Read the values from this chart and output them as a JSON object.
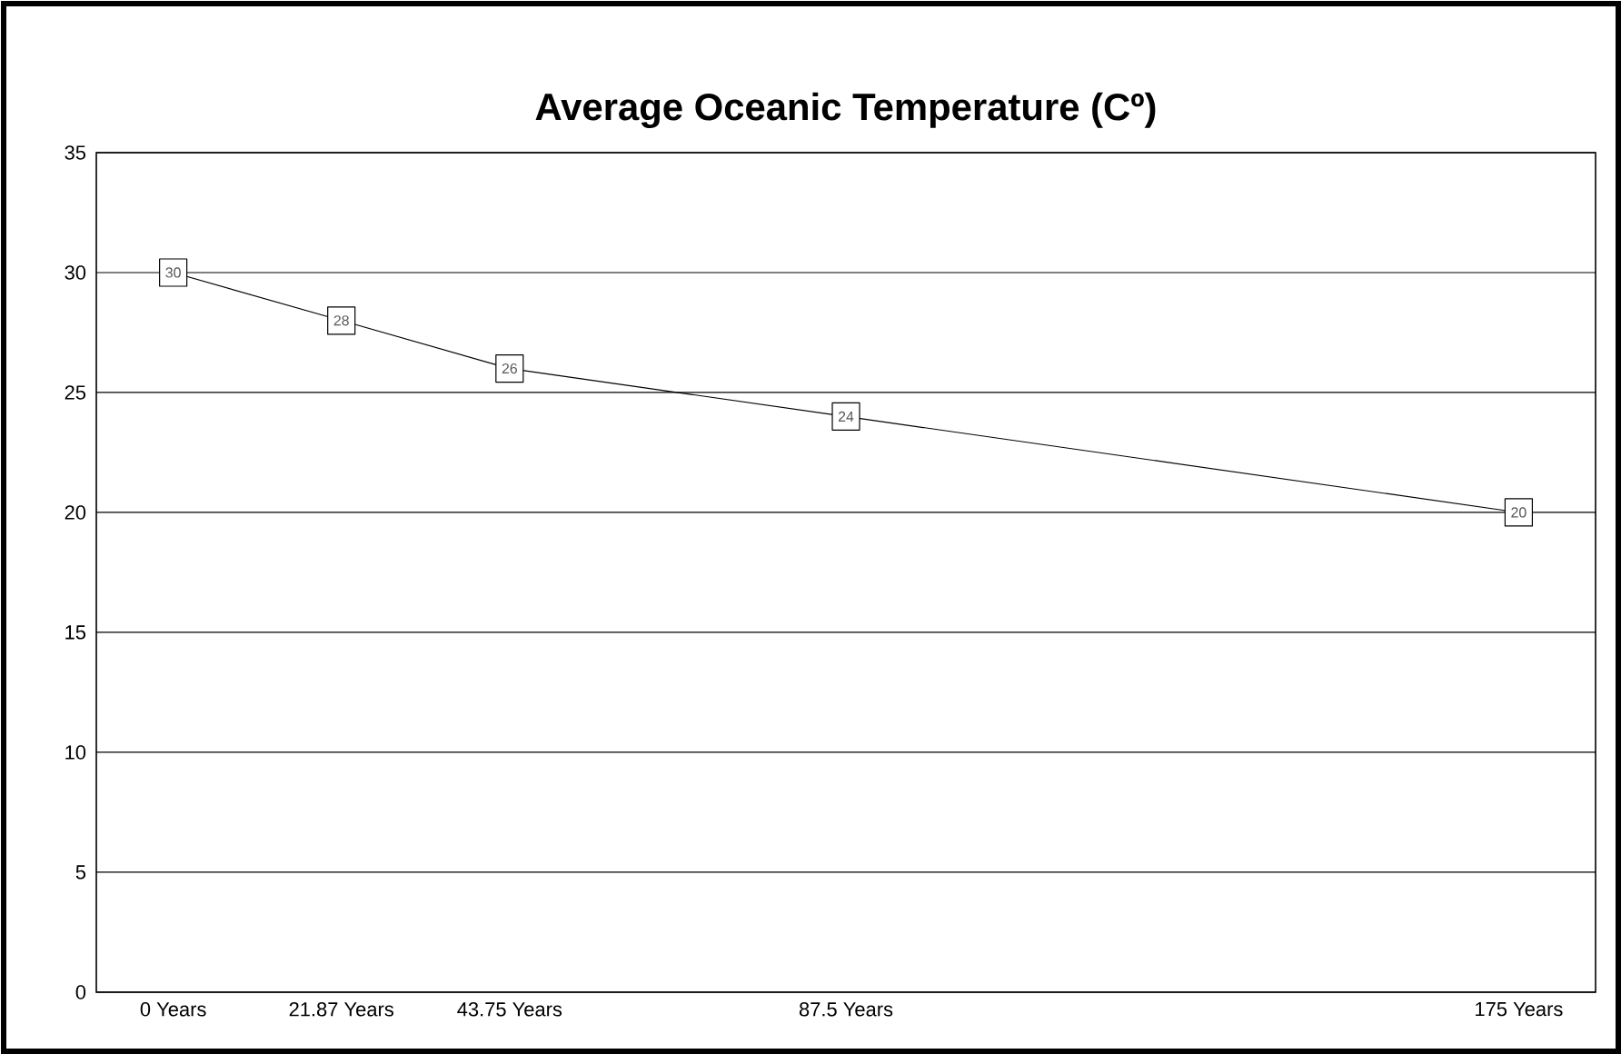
{
  "chart_data": {
    "type": "line",
    "title": "Average Oceanic Temperature (Cº)",
    "x": [
      0,
      21.87,
      43.75,
      87.5,
      175
    ],
    "values": [
      30,
      28,
      26,
      24,
      20
    ],
    "color": "#000000",
    "xlim": [
      -10,
      185
    ],
    "xticks": [
      {
        "value": 0,
        "label": "0 Years"
      },
      {
        "value": 21.87,
        "label": "21.87 Years"
      },
      {
        "value": 43.75,
        "label": "43.75 Years"
      },
      {
        "value": 87.5,
        "label": "87.5 Years"
      },
      {
        "value": 175,
        "label": "175 Years"
      }
    ],
    "ylim": [
      0,
      35
    ],
    "yticks": [
      0,
      5,
      10,
      15,
      20,
      25,
      30,
      35
    ],
    "grid": "y",
    "marker": "square",
    "line_style": "solid",
    "data_labels": true
  }
}
